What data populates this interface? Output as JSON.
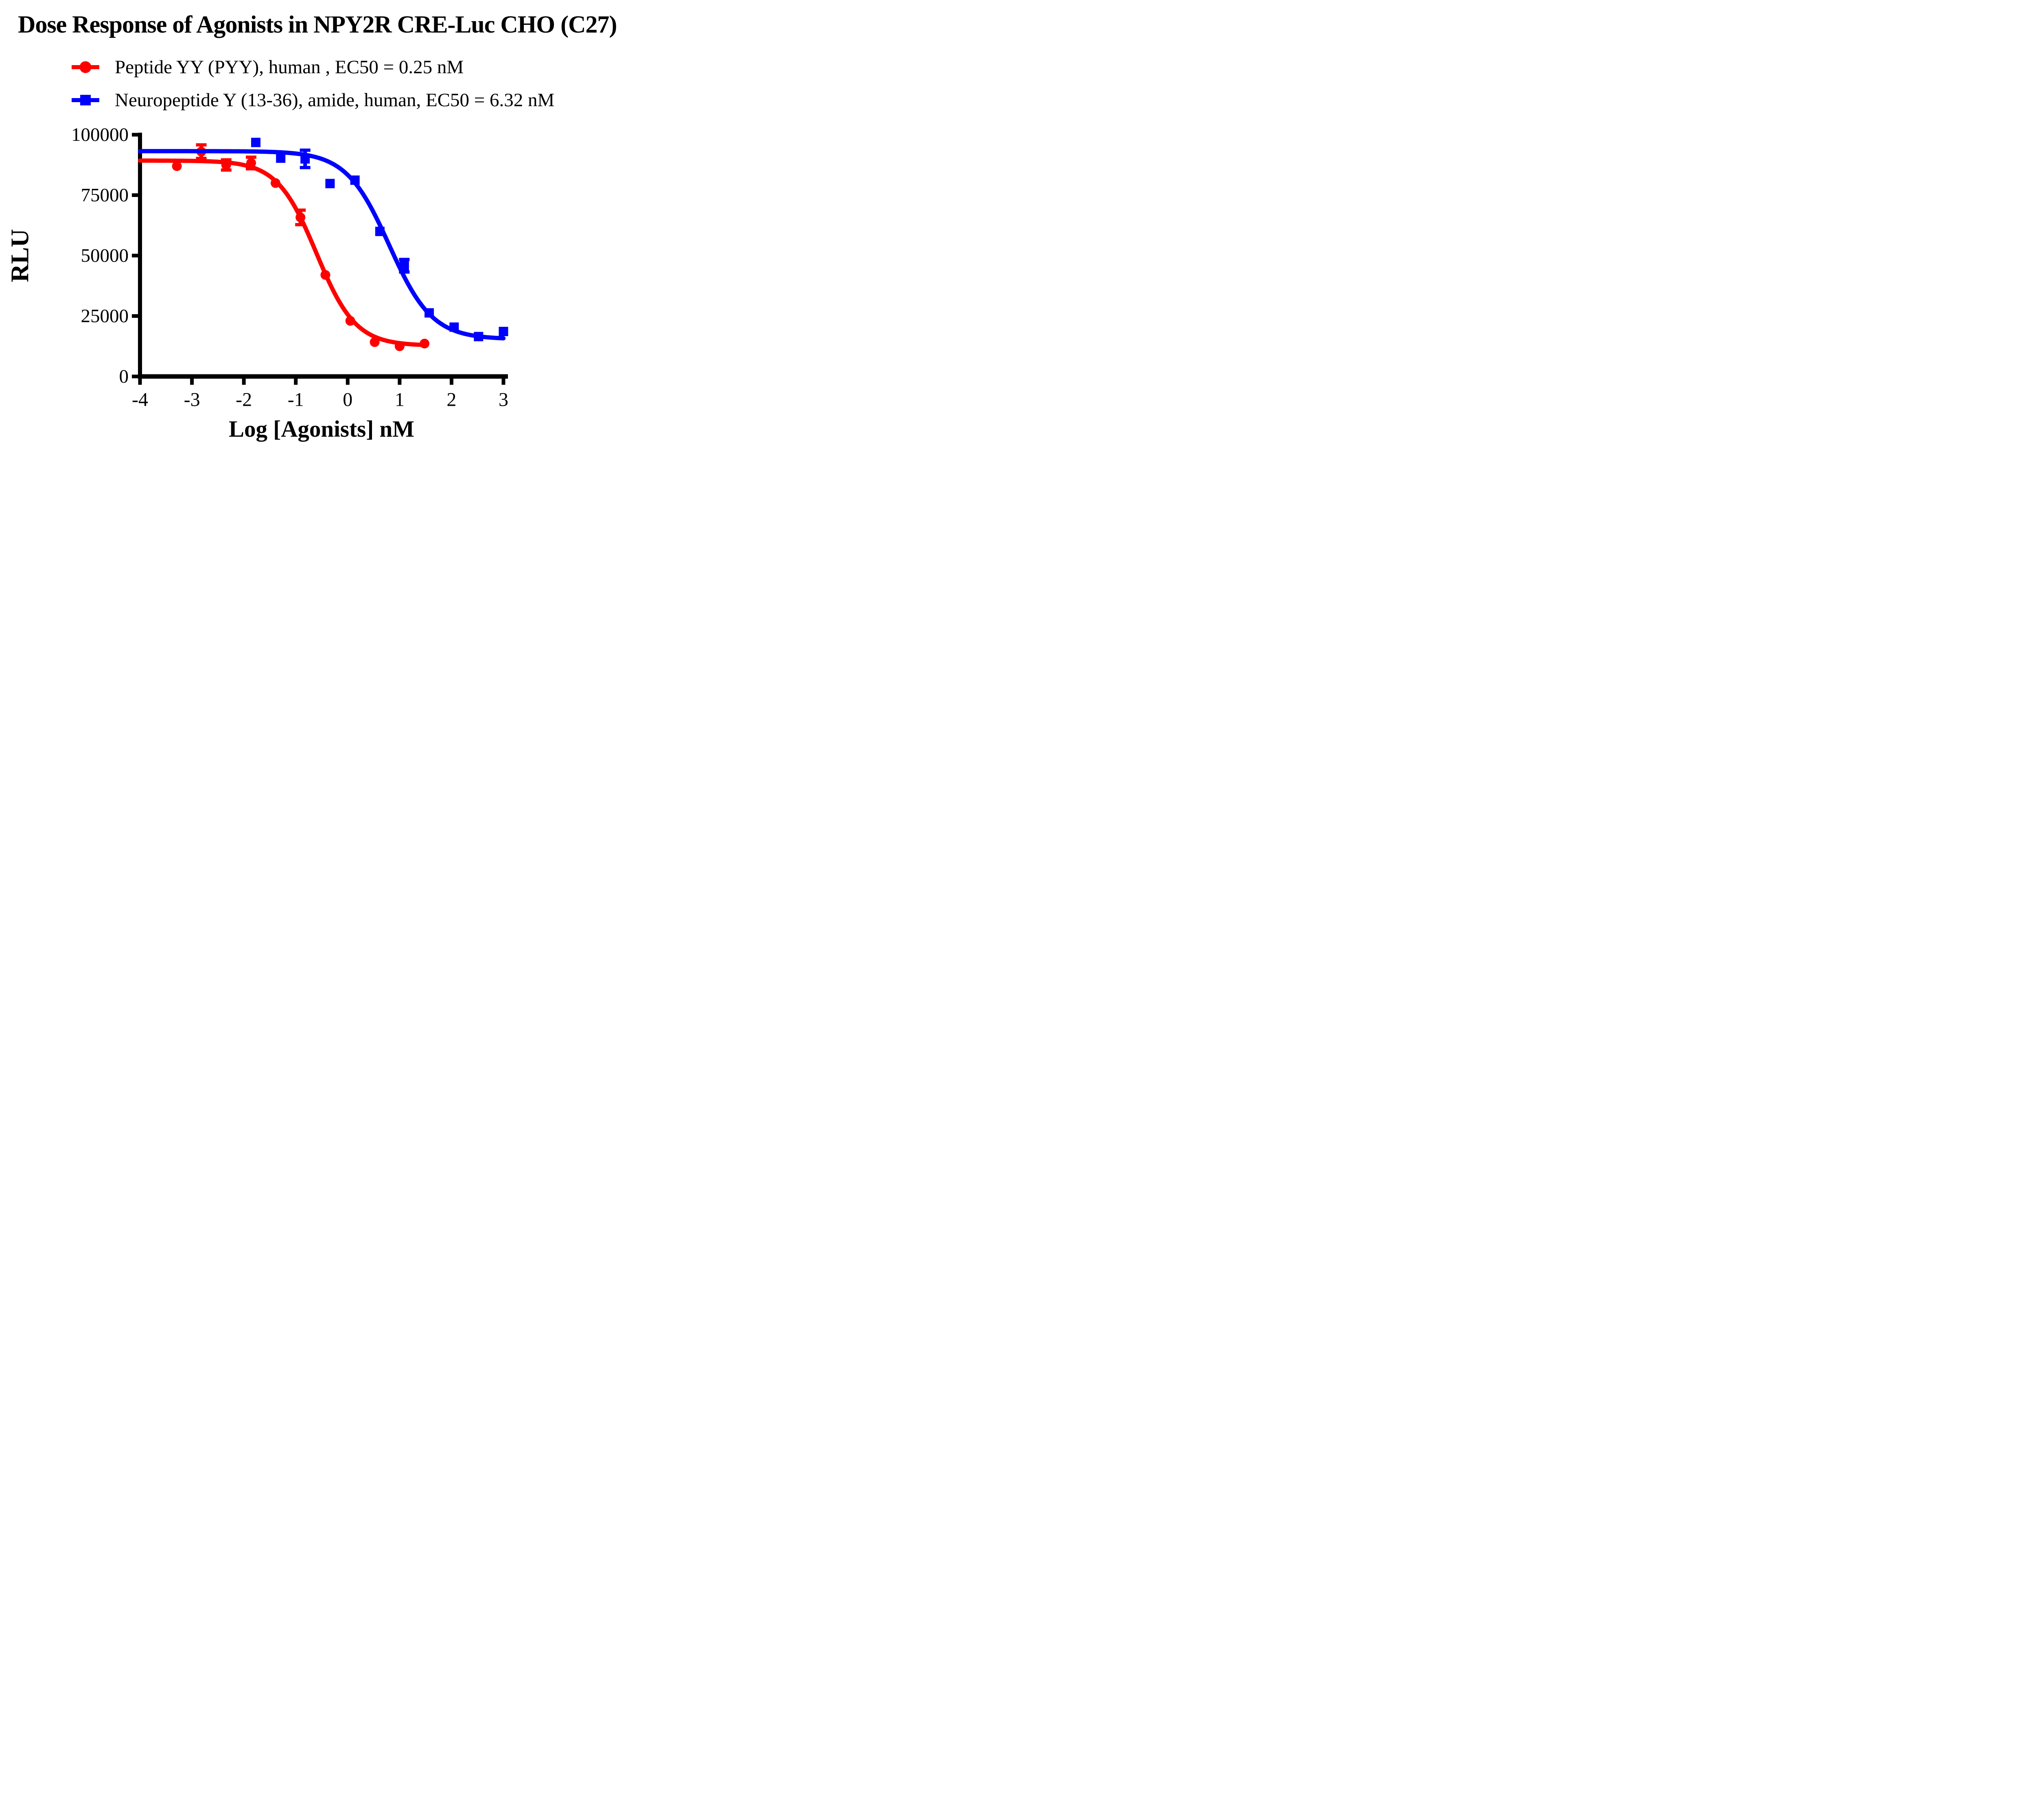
{
  "title": "Dose Response of Agonists in NPY2R CRE-Luc CHO (C27)",
  "chart_data": {
    "type": "scatter",
    "title": "Dose Response of Agonists in NPY2R CRE-Luc CHO (C27)",
    "xlabel": "Log [Agonists] nM",
    "ylabel": "RLU",
    "xlim": [
      -4,
      3
    ],
    "ylim": [
      0,
      100000
    ],
    "x_ticks": [
      -4,
      -3,
      -2,
      -1,
      0,
      1,
      2,
      3
    ],
    "x_tick_labels": [
      "-4",
      "-3",
      "-2",
      "-1",
      "0",
      "1",
      "2",
      "3"
    ],
    "y_ticks": [
      0,
      25000,
      50000,
      75000,
      100000
    ],
    "y_tick_labels": [
      "0",
      "25000",
      "50000",
      "75000",
      "100000"
    ],
    "grid": false,
    "legend_position": "top-left",
    "axis_color": "#000000",
    "series": [
      {
        "name": "Peptide YY (PYY), human , EC50 = 0.25 nM",
        "short_name": "Peptide YY (PYY), human",
        "ec50_label": "EC50 = 0.25 nM",
        "ec50_nM": 0.25,
        "color": "#FF0000",
        "marker": "circle",
        "x": [
          -3.29,
          -2.82,
          -2.34,
          -1.86,
          -1.39,
          -0.91,
          -0.43,
          0.05,
          0.52,
          1.0,
          1.48
        ],
        "y": [
          87000,
          93000,
          87500,
          88300,
          80000,
          65800,
          42000,
          23000,
          14200,
          12500,
          13600
        ],
        "errors": [
          {
            "x": -2.82,
            "y": 93000,
            "e": 2800
          },
          {
            "x": -2.34,
            "y": 87500,
            "e": 2100
          },
          {
            "x": -1.86,
            "y": 88300,
            "e": 2400
          },
          {
            "x": -0.91,
            "y": 65800,
            "e": 3000
          }
        ],
        "fit": {
          "model": "4PL",
          "top": 89300,
          "bottom": 12700,
          "log_ec50": -0.602,
          "hill": 1.15,
          "x_start": -4,
          "x_end": 1.48
        }
      },
      {
        "name": "Neuropeptide Y (13-36), amide, human, EC50 = 6.32 nM",
        "short_name": "Neuropeptide Y (13-36), amide, human",
        "ec50_label": "EC50 = 6.32 nM",
        "ec50_nM": 6.32,
        "color": "#0000FF",
        "marker": "square",
        "x": [
          -1.77,
          -1.29,
          -0.82,
          -0.34,
          0.14,
          0.62,
          1.09,
          1.57,
          2.05,
          2.52,
          3.0
        ],
        "y": [
          96800,
          90300,
          90000,
          79800,
          81200,
          60000,
          45800,
          26300,
          20400,
          16500,
          18600
        ],
        "errors": [
          {
            "x": -0.82,
            "y": 90000,
            "e": 3600
          },
          {
            "x": 1.09,
            "y": 45800,
            "e": 2600
          }
        ],
        "fit": {
          "model": "4PL",
          "top": 93200,
          "bottom": 15400,
          "log_ec50": 0.8,
          "hill": 1.05,
          "x_start": -4,
          "x_end": 3.0
        }
      }
    ]
  }
}
